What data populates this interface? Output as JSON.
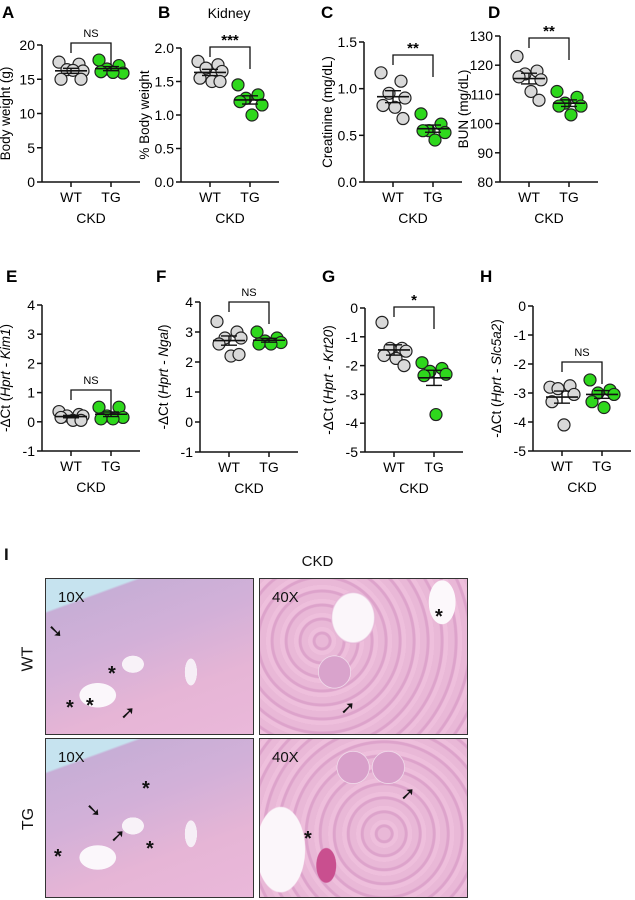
{
  "colors": {
    "wt_fill": "#d9d9d9",
    "tg_fill": "#2ed81c",
    "stroke": "#222222"
  },
  "chart_data": [
    {
      "panel": "A",
      "type": "scatter",
      "title": "",
      "group_label": "CKD",
      "categories": [
        "WT",
        "TG"
      ],
      "ylabel_parts": [
        {
          "text": "Body weight (g)",
          "italic": false
        }
      ],
      "ylim": [
        0,
        20
      ],
      "yticks": [
        0,
        5,
        10,
        15,
        20
      ],
      "series": [
        {
          "name": "WT",
          "values": [
            17.5,
            17.2,
            16.4,
            16.2,
            15.0,
            16.3,
            15.0
          ]
        },
        {
          "name": "TG",
          "values": [
            17.8,
            17.0,
            16.5,
            15.9,
            16.1,
            16.0
          ]
        }
      ],
      "significance": "NS"
    },
    {
      "panel": "B",
      "type": "scatter",
      "title": "Kidney",
      "group_label": "CKD",
      "categories": [
        "WT",
        "TG"
      ],
      "ylabel_parts": [
        {
          "text": "% Body weight",
          "italic": false
        }
      ],
      "ylim": [
        0,
        2.0
      ],
      "yticks": [
        "0.0",
        "0.5",
        "1.0",
        "1.5",
        "2.0"
      ],
      "series": [
        {
          "name": "WT",
          "values": [
            1.8,
            1.75,
            1.7,
            1.65,
            1.55,
            1.5,
            1.5
          ]
        },
        {
          "name": "TG",
          "values": [
            1.45,
            1.3,
            1.25,
            1.15,
            1.2,
            1.0
          ]
        }
      ],
      "significance": "***"
    },
    {
      "panel": "C",
      "type": "scatter",
      "title": "",
      "group_label": "CKD",
      "categories": [
        "WT",
        "TG"
      ],
      "ylabel_parts": [
        {
          "text": "Creatinine (mg/dL)",
          "italic": false
        }
      ],
      "ylim": [
        0,
        1.5
      ],
      "yticks": [
        "0.0",
        "0.5",
        "1.0",
        "1.5"
      ],
      "series": [
        {
          "name": "WT",
          "values": [
            1.17,
            1.08,
            0.95,
            0.9,
            0.82,
            0.8,
            0.68
          ]
        },
        {
          "name": "TG",
          "values": [
            0.73,
            0.62,
            0.55,
            0.53,
            0.55,
            0.45
          ]
        }
      ],
      "significance": "**"
    },
    {
      "panel": "D",
      "type": "scatter",
      "title": "",
      "group_label": "CKD",
      "categories": [
        "WT",
        "TG"
      ],
      "ylabel_parts": [
        {
          "text": "BUN (mg/dL)",
          "italic": false
        }
      ],
      "ylim": [
        80,
        130
      ],
      "yticks": [
        80,
        90,
        100,
        110,
        120,
        130
      ],
      "series": [
        {
          "name": "WT",
          "values": [
            123,
            118,
            117,
            115,
            116,
            111,
            108
          ]
        },
        {
          "name": "TG",
          "values": [
            111,
            109,
            107,
            106,
            106,
            103
          ]
        }
      ],
      "significance": "**"
    },
    {
      "panel": "E",
      "type": "scatter",
      "title": "",
      "group_label": "CKD",
      "categories": [
        "WT",
        "TG"
      ],
      "ylabel_parts": [
        {
          "text": "-ΔCt (",
          "italic": false
        },
        {
          "text": "Hprt - Kim1",
          "italic": true
        },
        {
          "text": ")",
          "italic": false
        }
      ],
      "ylim": [
        -1,
        4
      ],
      "yticks": [
        -1,
        0,
        1,
        2,
        3,
        4
      ],
      "series": [
        {
          "name": "WT",
          "values": [
            0.35,
            0.25,
            0.2,
            0.2,
            0.15,
            0.05,
            0.05
          ]
        },
        {
          "name": "TG",
          "values": [
            0.5,
            0.5,
            0.2,
            0.15,
            0.1,
            0.1
          ]
        }
      ],
      "significance": "NS"
    },
    {
      "panel": "F",
      "type": "scatter",
      "title": "",
      "group_label": "CKD",
      "categories": [
        "WT",
        "TG"
      ],
      "ylabel_parts": [
        {
          "text": "-ΔCt (",
          "italic": false
        },
        {
          "text": "Hprt - Ngal",
          "italic": true
        },
        {
          "text": ")",
          "italic": false
        }
      ],
      "ylim": [
        -1,
        4
      ],
      "yticks": [
        -1,
        0,
        1,
        2,
        3,
        4
      ],
      "series": [
        {
          "name": "WT",
          "values": [
            3.35,
            3.0,
            2.8,
            2.8,
            2.6,
            2.2,
            2.25
          ]
        },
        {
          "name": "TG",
          "values": [
            3.0,
            2.8,
            2.7,
            2.65,
            2.6,
            2.6
          ]
        }
      ],
      "significance": "NS"
    },
    {
      "panel": "G",
      "type": "scatter",
      "title": "",
      "group_label": "CKD",
      "categories": [
        "WT",
        "TG"
      ],
      "ylabel_parts": [
        {
          "text": "-ΔCt (",
          "italic": false
        },
        {
          "text": "Hprt - Krt20",
          "italic": true
        },
        {
          "text": ")",
          "italic": false
        }
      ],
      "ylim": [
        -5,
        0
      ],
      "yticks": [
        -5,
        -4,
        -3,
        -2,
        -1,
        0
      ],
      "series": [
        {
          "name": "WT",
          "values": [
            -0.5,
            -1.4,
            -1.4,
            -1.5,
            -1.65,
            -1.75,
            -2.0
          ]
        },
        {
          "name": "TG",
          "values": [
            -1.9,
            -2.1,
            -2.2,
            -2.3,
            -2.35,
            -3.7
          ]
        }
      ],
      "significance": "*"
    },
    {
      "panel": "H",
      "type": "scatter",
      "title": "",
      "group_label": "CKD",
      "categories": [
        "WT",
        "TG"
      ],
      "ylabel_parts": [
        {
          "text": "-ΔCt (",
          "italic": false
        },
        {
          "text": "Hprt - Slc5a2",
          "italic": true
        },
        {
          "text": ")",
          "italic": false
        }
      ],
      "ylim": [
        -5,
        0
      ],
      "yticks": [
        -5,
        -4,
        -3,
        -2,
        -1,
        0
      ],
      "series": [
        {
          "name": "WT",
          "values": [
            -2.8,
            -2.75,
            -2.85,
            -3.05,
            -3.3,
            -4.1
          ]
        },
        {
          "name": "TG",
          "values": [
            -2.55,
            -2.9,
            -3.0,
            -3.05,
            -3.3,
            -3.5
          ]
        }
      ],
      "significance": "NS"
    }
  ],
  "histology": {
    "panel": "I",
    "title": "CKD",
    "rows": [
      {
        "label": "WT",
        "images": [
          {
            "magnification": "10X"
          },
          {
            "magnification": "40X"
          }
        ]
      },
      {
        "label": "TG",
        "images": [
          {
            "magnification": "10X"
          },
          {
            "magnification": "40X"
          }
        ]
      }
    ],
    "asterisk": "*",
    "arrow": "➘"
  }
}
